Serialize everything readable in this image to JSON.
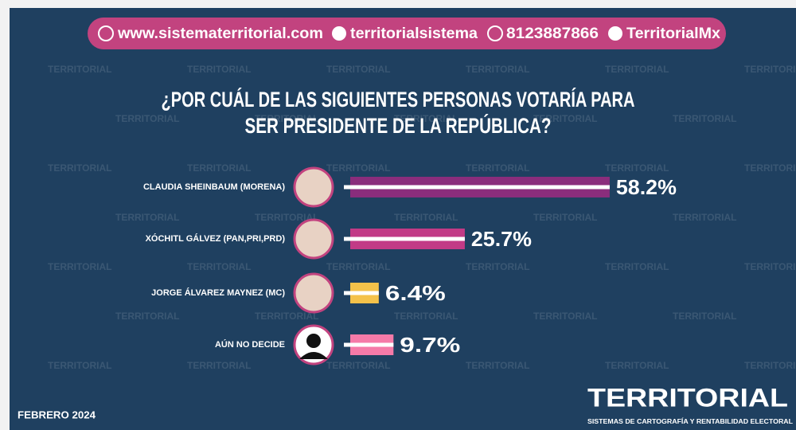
{
  "header": {
    "website": "www.sistematerritorial.com",
    "facebook": "territorialsistema",
    "whatsapp": "8123887866",
    "twitter": "TerritorialMx"
  },
  "chart_data": {
    "type": "bar",
    "orientation": "horizontal",
    "title": [
      "¿POR CUÁL DE LAS SIGUIENTES PERSONAS VOTARÍA PARA",
      "SER PRESIDENTE DE LA REPÚBLICA?"
    ],
    "categories": [
      "CLAUDIA SHEINBAUM (MORENA)",
      "XÓCHITL GÁLVEZ (PAN,PRI,PRD)",
      "JORGE ÁLVAREZ MAYNEZ (MC)",
      "AÚN NO DECIDE"
    ],
    "values": [
      58.2,
      25.7,
      6.4,
      9.7
    ],
    "value_labels": [
      "58.2%",
      "25.7%",
      "6.4%",
      "9.7%"
    ],
    "colors": [
      "#8a2d7c",
      "#c23a86",
      "#f4c24a",
      "#f57aa8"
    ]
  },
  "footer": {
    "date": "FEBRERO 2024",
    "logo": "TERRITORIAL",
    "tagline": "SISTEMAS DE CARTOGRAFÍA Y RENTABILIDAD ELECTORAL",
    "watermark": "TERRITORIAL"
  }
}
